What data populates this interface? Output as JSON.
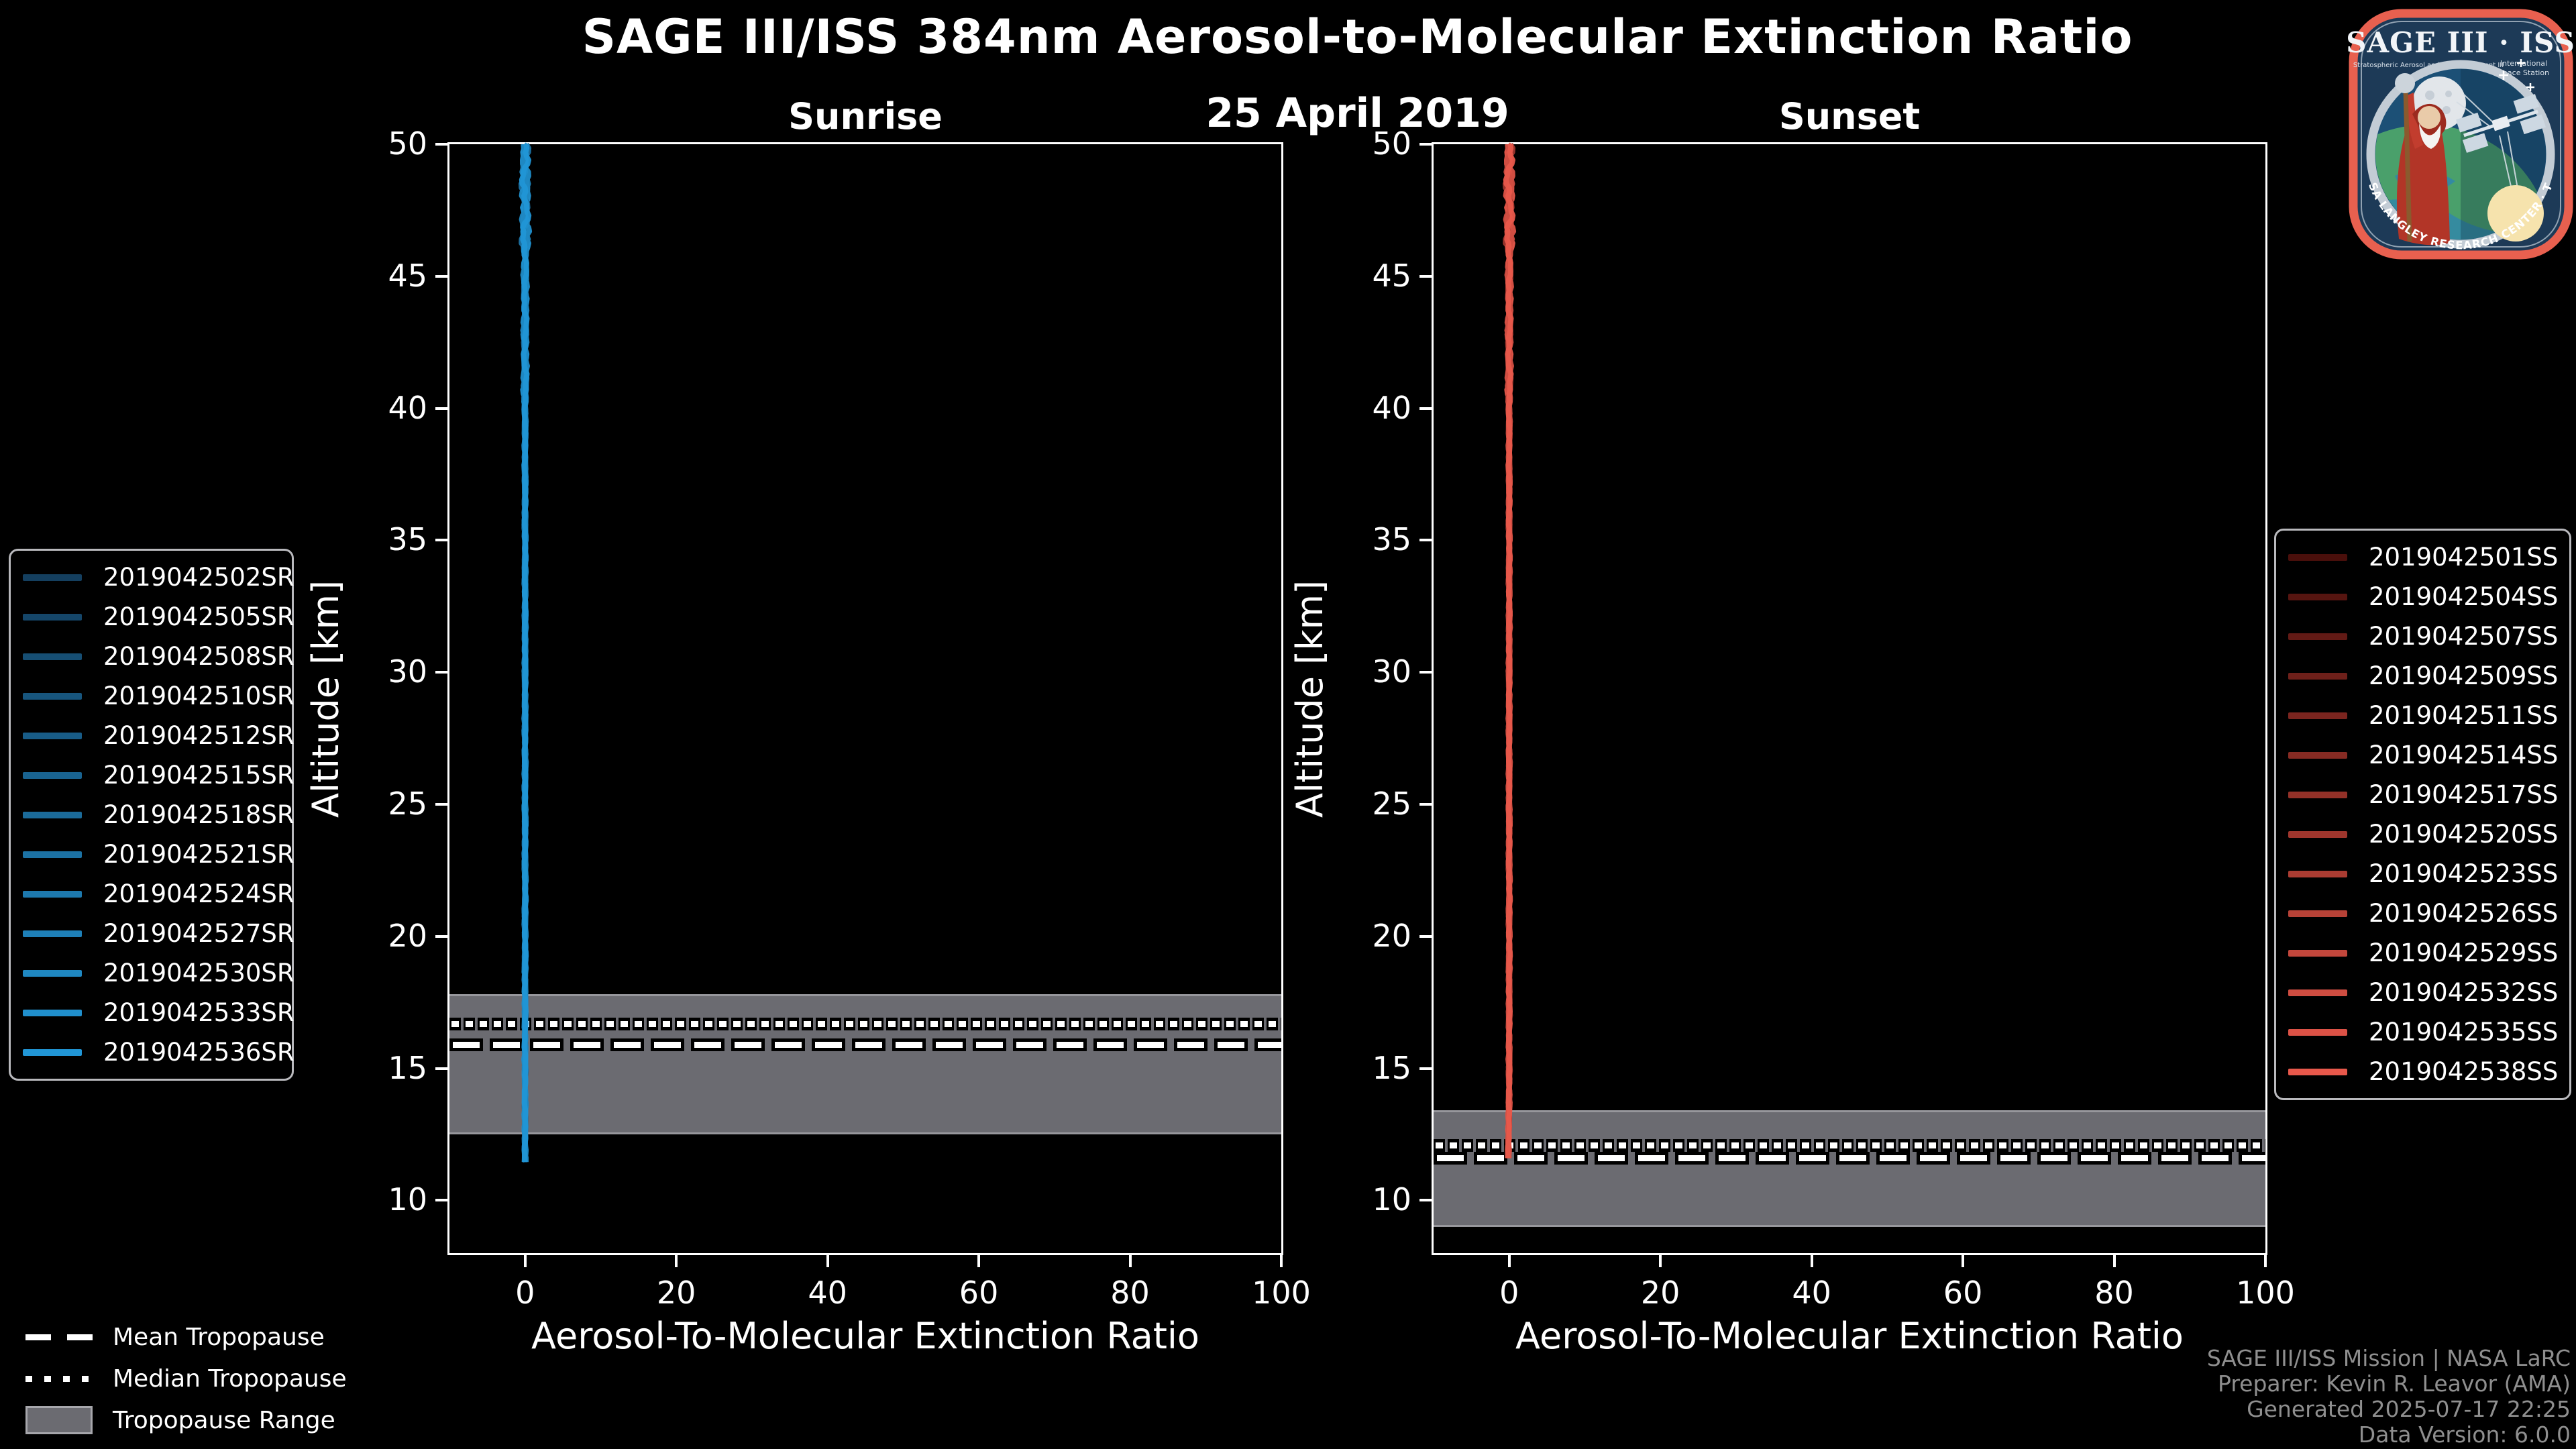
{
  "header": {
    "title": "SAGE III/ISS 384nm Aerosol-to-Molecular Extinction Ratio",
    "date": "25 April 2019"
  },
  "logo": {
    "title": "SAGE III · ISS",
    "subtitle_left": "Stratospheric Aerosol and Gas Experiment III",
    "subtitle_right_1": "International",
    "subtitle_right_2": "Space Station",
    "ring_text": "BALL · NASA LANGLEY RESEARCH CENTER · TAS-I · ESA"
  },
  "tropopause_legend": {
    "mean_label": "Mean Tropopause",
    "median_label": "Median Tropopause",
    "range_label": "Tropopause Range"
  },
  "credits": {
    "line1": "SAGE III/ISS Mission | NASA LaRC",
    "line2": "Preparer: Kevin R. Leavor (AMA)",
    "line3": "Generated 2025-07-17 22:25",
    "line4": "Data Version: 6.0.0"
  },
  "colors": {
    "background": "#000000",
    "text": "#ffffff",
    "credits_text": "#8f8f8f",
    "tropopause_band": "#6b6b71",
    "tropopause_band_edge": "#97979c",
    "legend_border": "#b9b9bd",
    "sunrise_line": "#1787c8",
    "sunset_line": "#e8584b",
    "logo_border": "#e8604f",
    "logo_background": "#1d3a57"
  },
  "chart_data": [
    {
      "type": "line",
      "panel": "sunrise",
      "title": "Sunrise",
      "xlabel": "Aerosol-To-Molecular Extinction Ratio",
      "ylabel": "Altitude [km]",
      "xlim": [
        -10,
        100
      ],
      "ylim": [
        8,
        50
      ],
      "xticks": [
        0,
        20,
        40,
        60,
        80,
        100
      ],
      "yticks": [
        10,
        15,
        20,
        25,
        30,
        35,
        40,
        45,
        50
      ],
      "grid": false,
      "legend_position": "outside-left",
      "series": [
        {
          "name": "2019042502SR",
          "color": "#143f5f"
        },
        {
          "name": "2019042505SR",
          "color": "#154669"
        },
        {
          "name": "2019042508SR",
          "color": "#164e73"
        },
        {
          "name": "2019042510SR",
          "color": "#17557d"
        },
        {
          "name": "2019042512SR",
          "color": "#185c87"
        },
        {
          "name": "2019042515SR",
          "color": "#196390"
        },
        {
          "name": "2019042518SR",
          "color": "#1b6b9a"
        },
        {
          "name": "2019042521SR",
          "color": "#1c72a4"
        },
        {
          "name": "2019042524SR",
          "color": "#1d79ae"
        },
        {
          "name": "2019042527SR",
          "color": "#1e80b8"
        },
        {
          "name": "2019042530SR",
          "color": "#1f88c2"
        },
        {
          "name": "2019042533SR",
          "color": "#208fcc"
        },
        {
          "name": "2019042536SR",
          "color": "#2196d6"
        }
      ],
      "profile": {
        "x_value": 0,
        "alt_min": 11.4,
        "alt_max": 50,
        "description": "All sunrise profiles nearly constant at extinction ratio ≈ 0 from ~11.4 km up to 50 km"
      },
      "tropopause": {
        "mean_km": 15.9,
        "median_km": 16.7,
        "range_km": [
          12.5,
          17.8
        ]
      }
    },
    {
      "type": "line",
      "panel": "sunset",
      "title": "Sunset",
      "xlabel": "Aerosol-To-Molecular Extinction Ratio",
      "ylabel": "Altitude [km]",
      "xlim": [
        -10,
        100
      ],
      "ylim": [
        8,
        50
      ],
      "xticks": [
        0,
        20,
        40,
        60,
        80,
        100
      ],
      "yticks": [
        10,
        15,
        20,
        25,
        30,
        35,
        40,
        45,
        50
      ],
      "grid": false,
      "legend_position": "outside-right",
      "series": [
        {
          "name": "2019042501SS",
          "color": "#4a0f0b"
        },
        {
          "name": "2019042504SS",
          "color": "#561510"
        },
        {
          "name": "2019042507SS",
          "color": "#621a15"
        },
        {
          "name": "2019042509SS",
          "color": "#6e201a"
        },
        {
          "name": "2019042511SS",
          "color": "#7b251f"
        },
        {
          "name": "2019042514SS",
          "color": "#872b23"
        },
        {
          "name": "2019042517SS",
          "color": "#933128"
        },
        {
          "name": "2019042520SS",
          "color": "#9f362d"
        },
        {
          "name": "2019042523SS",
          "color": "#ab3c32"
        },
        {
          "name": "2019042526SS",
          "color": "#b74237"
        },
        {
          "name": "2019042529SS",
          "color": "#c3473c"
        },
        {
          "name": "2019042532SS",
          "color": "#cf4d41"
        },
        {
          "name": "2019042535SS",
          "color": "#dc5246"
        },
        {
          "name": "2019042538SS",
          "color": "#e8584b"
        }
      ],
      "profile": {
        "x_value": 0,
        "alt_min": 11.5,
        "alt_max": 50,
        "description": "All sunset profiles nearly constant at extinction ratio ≈ 0 from ~11.5 km up to 50 km"
      },
      "tropopause": {
        "mean_km": 11.6,
        "median_km": 12.1,
        "range_km": [
          9.0,
          13.4
        ]
      }
    }
  ]
}
